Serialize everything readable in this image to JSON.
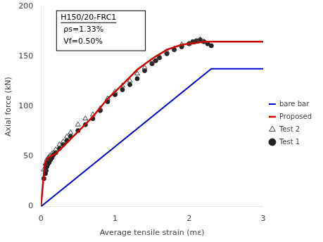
{
  "chart_data": {
    "type": "scatter",
    "xlabel": "Average tensile strain (mε)",
    "ylabel": "Axial force (kN)",
    "annotations": [
      "H150/20-FRC1",
      "ρs=1.33%",
      "Vf=0.50%"
    ],
    "xlim": [
      0,
      3
    ],
    "ylim": [
      0,
      200
    ],
    "xticks": [
      0,
      1,
      2,
      3
    ],
    "yticks": [
      0,
      50,
      100,
      150,
      200
    ],
    "grid": false,
    "legend": "right",
    "series": [
      {
        "name": "Test 1",
        "type": "scatter",
        "marker": "circle",
        "color": "#222222",
        "x": [
          0.04,
          0.06,
          0.07,
          0.08,
          0.09,
          0.1,
          0.11,
          0.12,
          0.13,
          0.15,
          0.17,
          0.2,
          0.25,
          0.3,
          0.35,
          0.4,
          0.5,
          0.6,
          0.7,
          0.8,
          0.9,
          1.0,
          1.1,
          1.2,
          1.3,
          1.4,
          1.5,
          1.55,
          1.6,
          1.7,
          1.8,
          1.9,
          2.0,
          2.05,
          2.1,
          2.15,
          2.2,
          2.25,
          2.3
        ],
        "values": [
          28,
          33,
          36,
          40,
          42,
          44,
          44,
          46,
          47,
          49,
          52,
          54,
          58,
          62,
          66,
          70,
          76,
          82,
          88,
          96,
          105,
          112,
          117,
          122,
          128,
          136,
          143,
          146,
          149,
          153,
          157,
          160,
          163,
          165,
          166,
          167,
          165,
          163,
          161
        ]
      },
      {
        "name": "Test 2",
        "type": "scatter",
        "marker": "triangle-open",
        "color": "#444444",
        "x": [
          0.04,
          0.06,
          0.08,
          0.1,
          0.12,
          0.15,
          0.2,
          0.25,
          0.3,
          0.35,
          0.4,
          0.5,
          0.6,
          0.7,
          0.8,
          0.9,
          1.0,
          1.1,
          1.2,
          1.3,
          1.4,
          1.5,
          1.6,
          1.7,
          1.8,
          1.9,
          2.0,
          2.05,
          2.1,
          2.15,
          2.2
        ],
        "values": [
          37,
          43,
          47,
          49,
          51,
          53,
          57,
          62,
          65,
          70,
          74,
          82,
          88,
          92,
          98,
          108,
          115,
          121,
          126,
          133,
          139,
          145,
          150,
          155,
          158,
          162,
          163,
          164,
          165,
          167,
          165
        ]
      },
      {
        "name": "Proposed",
        "type": "line",
        "line_style": "solid",
        "color": "#cc0000",
        "x": [
          0,
          0.05,
          0.08,
          0.1,
          0.15,
          0.2,
          0.3,
          0.5,
          0.7,
          0.9,
          1.1,
          1.3,
          1.5,
          1.7,
          1.9,
          2.1,
          2.2,
          2.3,
          3.0
        ],
        "values": [
          0,
          42,
          47,
          49,
          51,
          53,
          60,
          75,
          90,
          108,
          122,
          137,
          148,
          157,
          162,
          164,
          165,
          165,
          165
        ]
      },
      {
        "name": "bare bar",
        "type": "line",
        "line_style": "solid",
        "color": "#0000cc",
        "x": [
          0,
          2.3,
          3.0
        ],
        "values": [
          0,
          138,
          138
        ]
      }
    ]
  }
}
